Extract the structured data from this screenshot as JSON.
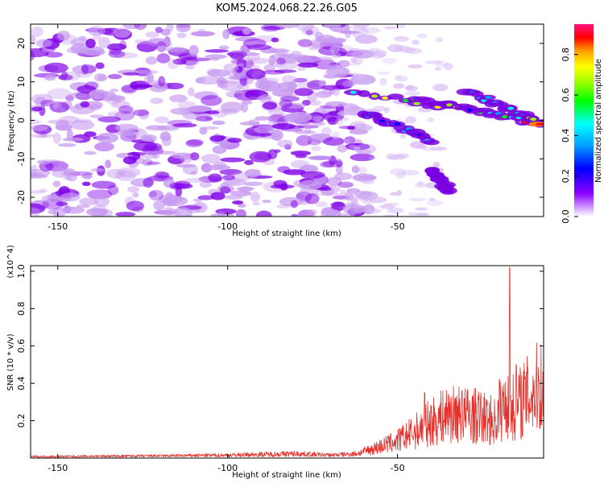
{
  "title": "KOM5.2024.068.22.26.G05",
  "chart_data": [
    {
      "type": "heatmap",
      "xlabel": "Height of straight line (km)",
      "ylabel": "Frequency (Hz)",
      "xlim": [
        -158,
        -7
      ],
      "ylim": [
        -25,
        25
      ],
      "xticks": [
        -150,
        -100,
        -50
      ],
      "yticks": [
        -20,
        -10,
        0,
        10,
        20
      ],
      "colorbar": {
        "label": "Normalized spectral amplitude",
        "range": [
          0,
          0.95
        ],
        "ticks": [
          0.0,
          0.2,
          0.4,
          0.6,
          0.8
        ]
      },
      "ridges": [
        {
          "x0": -63,
          "y0": 8,
          "x1": -7,
          "y1": -1,
          "strength": 0.85
        },
        {
          "x0": -45,
          "y0": 6,
          "x1": -8,
          "y1": -1,
          "strength": 0.7
        },
        {
          "x0": -30,
          "y0": 8,
          "x1": -10,
          "y1": 0,
          "strength": 0.6
        },
        {
          "x0": -60,
          "y0": 2,
          "x1": -40,
          "y1": -5,
          "strength": 0.45
        },
        {
          "x0": -40,
          "y0": -13,
          "x1": -35,
          "y1": -18,
          "strength": 0.35
        }
      ]
    },
    {
      "type": "line",
      "xlabel": "Height of straight line (km)",
      "ylabel": "SNR (10 * v/v)",
      "scale_label": "(x10^4)",
      "xlim": [
        -158,
        -7
      ],
      "ylim": [
        0,
        1.03
      ],
      "xticks": [
        -150,
        -100,
        -50
      ],
      "yticks": [
        0.2,
        0.4,
        0.6,
        0.8,
        1.0
      ],
      "series": [
        {
          "color": "#e8302a",
          "envelope": [
            [
              -158,
              0.01
            ],
            [
              -120,
              0.015
            ],
            [
              -100,
              0.02
            ],
            [
              -90,
              0.025
            ],
            [
              -80,
              0.03
            ],
            [
              -70,
              0.02
            ],
            [
              -62,
              0.03
            ],
            [
              -55,
              0.08
            ],
            [
              -50,
              0.12
            ],
            [
              -45,
              0.18
            ],
            [
              -40,
              0.25
            ],
            [
              -35,
              0.3
            ],
            [
              -30,
              0.3
            ],
            [
              -25,
              0.28
            ],
            [
              -21,
              0.25
            ],
            [
              -18,
              0.4
            ],
            [
              -16,
              0.35
            ],
            [
              -12,
              0.42
            ],
            [
              -8,
              0.5
            ]
          ],
          "spikes": [
            [
              -42,
              0.35
            ],
            [
              -35,
              0.34
            ],
            [
              -31,
              0.36
            ],
            [
              -28,
              0.33
            ],
            [
              -20,
              0.42
            ],
            [
              -17,
              1.02
            ],
            [
              -15,
              0.5
            ]
          ]
        }
      ]
    }
  ]
}
